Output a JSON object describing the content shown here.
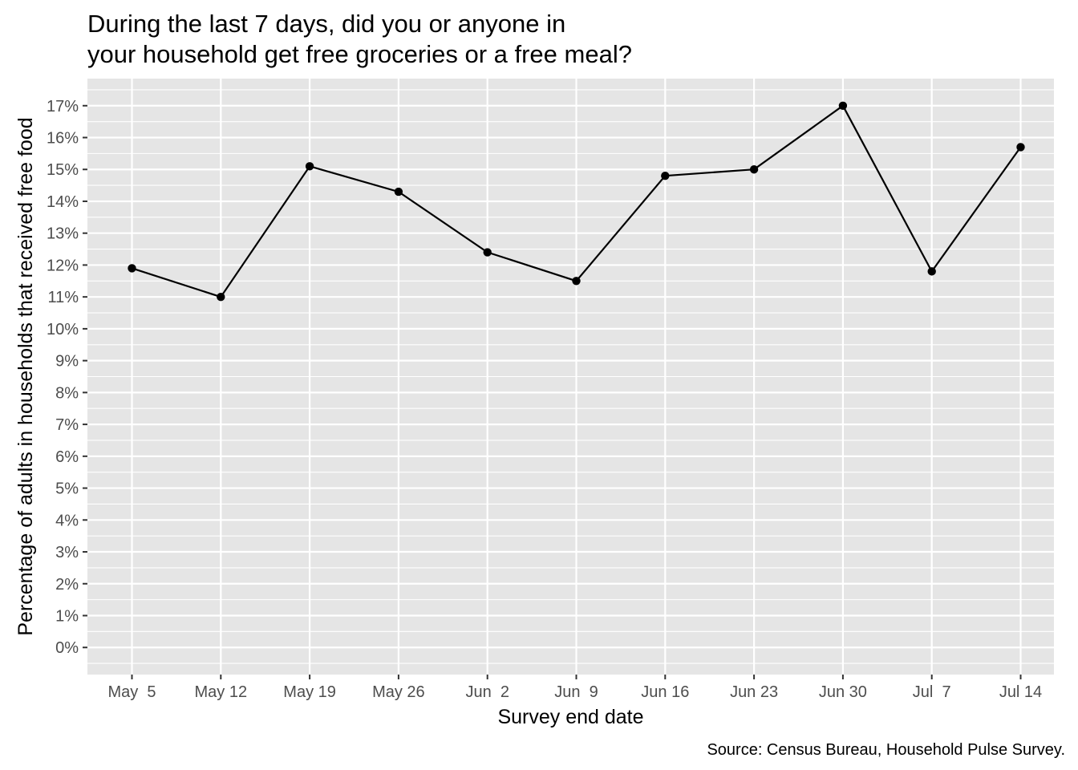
{
  "chart_data": {
    "type": "line",
    "title_lines": [
      "During the last 7 days, did you or anyone in",
      "your household get free groceries or a free meal?"
    ],
    "xlabel": "Survey end date",
    "ylabel": "Percentage of adults in households that received free food",
    "caption": "Source: Census Bureau, Household Pulse Survey.",
    "categories": [
      "May  5",
      "May 12",
      "May 19",
      "May 26",
      "Jun  2",
      "Jun  9",
      "Jun 16",
      "Jun 23",
      "Jun 30",
      "Jul  7",
      "Jul 14"
    ],
    "values": [
      11.9,
      11.0,
      15.1,
      14.3,
      12.4,
      11.5,
      14.8,
      15.0,
      17.0,
      11.8,
      15.7
    ],
    "y_ticks": [
      0,
      1,
      2,
      3,
      4,
      5,
      6,
      7,
      8,
      9,
      10,
      11,
      12,
      13,
      14,
      15,
      16,
      17
    ],
    "y_tick_labels": [
      "0%",
      "1%",
      "2%",
      "3%",
      "4%",
      "5%",
      "6%",
      "7%",
      "8%",
      "9%",
      "10%",
      "11%",
      "12%",
      "13%",
      "14%",
      "15%",
      "16%",
      "17%"
    ],
    "ylim": [
      -0.85,
      17.85
    ],
    "grid": true,
    "colors": {
      "panel_background": "#e5e5e5",
      "grid": "#ffffff",
      "line": "#000000",
      "point": "#000000",
      "tick_label": "#4d4d4d",
      "tick_mark": "#333333"
    }
  }
}
